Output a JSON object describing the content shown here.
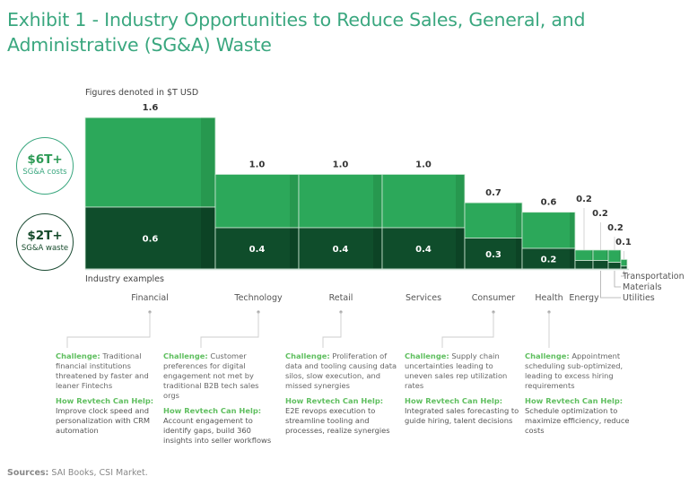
{
  "title": "Exhibit 1 - Industry Opportunities to Reduce Sales, General, and Administrative (SG&A) Waste",
  "figures_note": "Figures denoted in $T USD",
  "circles": {
    "costs": {
      "value": "$6T+",
      "label": "SG&A costs"
    },
    "waste": {
      "value": "$2T+",
      "label": "SG&A waste"
    }
  },
  "industry_examples_label": "Industry examples",
  "colors": {
    "costs": "#2ca85a",
    "costs_shade": "#27984f",
    "waste": "#0f4d2b",
    "waste_shade": "#0c4325",
    "title": "#3aa77f",
    "challenge_head": "#5fbf5f"
  },
  "chart_data": {
    "type": "bar",
    "subtype": "marimekko-stacked",
    "title": "Exhibit 1 - Industry Opportunities to Reduce Sales, General, and Administrative (SG&A) Waste",
    "unit": "$T USD",
    "categories": [
      "Financial",
      "Technology",
      "Retail",
      "Services",
      "Consumer",
      "Health",
      "Energy",
      "Utilities",
      "Materials",
      "Transportation"
    ],
    "series": [
      {
        "name": "SG&A costs",
        "values": [
          1.6,
          1.0,
          1.0,
          1.0,
          0.7,
          0.6,
          0.2,
          0.2,
          0.2,
          0.1
        ]
      },
      {
        "name": "SG&A waste",
        "values": [
          0.6,
          0.4,
          0.4,
          0.4,
          0.3,
          0.2,
          null,
          null,
          null,
          null
        ]
      }
    ],
    "total_labels": [
      "1.6",
      "1.0",
      "1.0",
      "1.0",
      "0.7",
      "0.6",
      "0.2",
      "0.2",
      "0.2",
      "0.1"
    ],
    "waste_labels": [
      "0.6",
      "0.4",
      "0.4",
      "0.4",
      "0.3",
      "0.2",
      "",
      "",
      "",
      ""
    ],
    "xlabel": "Industry examples",
    "ylabel": "",
    "legend": [
      {
        "name": "SG&A costs",
        "total": "$6T+"
      },
      {
        "name": "SG&A waste",
        "total": "$2T+"
      }
    ],
    "legend_position": "left",
    "grid": false
  },
  "callouts": [
    {
      "industry": "Financial",
      "challenge_head": "Challenge:",
      "challenge": "Traditional financial institutions threatened by faster and leaner Fintechs",
      "help_head": "How Revtech Can Help:",
      "help": "Improve clock speed and personalization with CRM automation"
    },
    {
      "industry": "Technology",
      "challenge_head": "Challenge:",
      "challenge": "Customer preferences for digital engagement not met by traditional B2B tech sales orgs",
      "help_head": "How Revtech Can Help:",
      "help": "Account engagement to identify gaps, build 360 insights into seller workflows"
    },
    {
      "industry": "Retail",
      "challenge_head": "Challenge:",
      "challenge": "Proliferation of data and tooling causing data silos, slow execution, and missed synergies",
      "help_head": "How Revtech Can Help:",
      "help": "E2E revops execution to streamline tooling and processes, realize synergies"
    },
    {
      "industry": "Consumer",
      "challenge_head": "Challenge:",
      "challenge": "Supply chain uncertainties leading to uneven sales rep utilization rates",
      "help_head": "How Revtech Can Help:",
      "help": "Integrated sales forecasting to guide hiring, talent decisions"
    },
    {
      "industry": "Health",
      "challenge_head": "Challenge:",
      "challenge": "Appointment scheduling sub-optimized, leading to excess hiring requirements",
      "help_head": "How Revtech Can Help:",
      "help": "Schedule optimization to maximize efficiency, reduce costs"
    }
  ],
  "sources": {
    "head": "Sources:",
    "text": "SAI Books, CSI Market."
  }
}
